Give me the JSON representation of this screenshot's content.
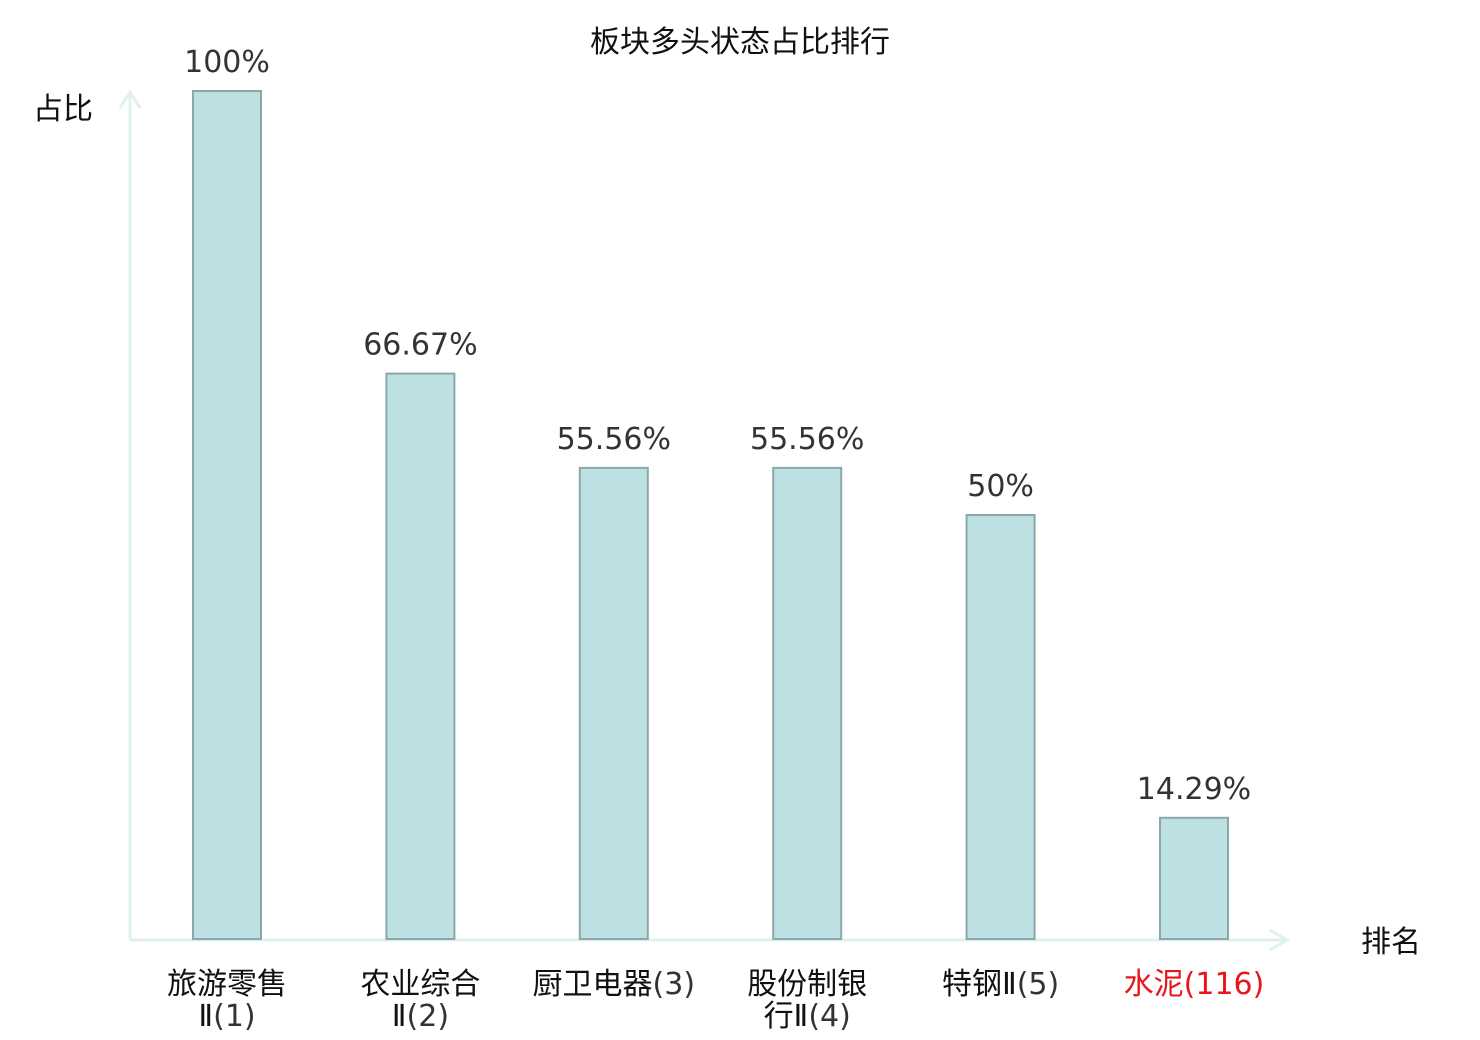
{
  "chart_data": {
    "type": "bar",
    "title": "板块多头状态占比排行",
    "xlabel": "排名",
    "ylabel": "占比",
    "ylim": [
      0,
      100
    ],
    "grid": false,
    "categories": [
      {
        "name": "旅游零售Ⅱ",
        "rank": "(1)",
        "lines": [
          {
            "name": "旅游零售",
            "rank": ""
          },
          {
            "name": "Ⅱ",
            "rank": "(1)"
          }
        ]
      },
      {
        "name": "农业综合Ⅱ",
        "rank": "(2)",
        "lines": [
          {
            "name": "农业综合",
            "rank": ""
          },
          {
            "name": "Ⅱ",
            "rank": "(2)"
          }
        ]
      },
      {
        "name": "厨卫电器",
        "rank": "(3)",
        "lines": [
          {
            "name": "厨卫电器",
            "rank": "(3)"
          }
        ]
      },
      {
        "name": "股份制银行Ⅱ",
        "rank": "(4)",
        "lines": [
          {
            "name": "股份制银",
            "rank": ""
          },
          {
            "name": "行Ⅱ",
            "rank": "(4)"
          }
        ]
      },
      {
        "name": "特钢Ⅱ",
        "rank": "(5)",
        "lines": [
          {
            "name": "特钢Ⅱ",
            "rank": "(5)"
          }
        ]
      },
      {
        "name": "水泥",
        "rank": "(116)",
        "lines": [
          {
            "name": "水泥",
            "rank": "(116)"
          }
        ],
        "highlight": true
      }
    ],
    "values": [
      100,
      66.67,
      55.56,
      55.56,
      50,
      14.29
    ],
    "value_labels": [
      "100%",
      "66.67%",
      "55.56%",
      "55.56%",
      "50%",
      "14.29%"
    ],
    "colors": {
      "bar_fill": "#bde0e3",
      "bar_stroke": "#8aa8ab",
      "axis": "#dff1ee",
      "highlight": "#e8161b",
      "text": "#111111"
    }
  }
}
